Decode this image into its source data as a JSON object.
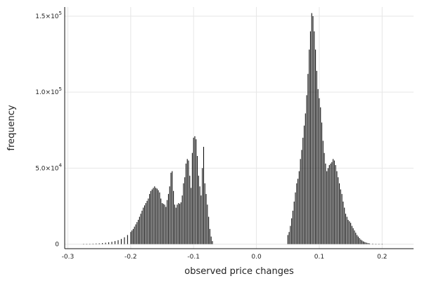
{
  "chart_data": {
    "type": "bar",
    "title": "",
    "xlabel": "observed price changes",
    "ylabel": "frequency",
    "xlim": [
      -0.305,
      0.25
    ],
    "ylim": [
      -3000,
      156000
    ],
    "grid": true,
    "legend": "none",
    "bar_color": "#111111",
    "grid_color": "#e6e6e6",
    "x_ticks": [
      {
        "value": -0.3,
        "label": "-0.3"
      },
      {
        "value": -0.2,
        "label": "-0.2"
      },
      {
        "value": -0.1,
        "label": "-0.1"
      },
      {
        "value": 0.0,
        "label": "0.0"
      },
      {
        "value": 0.1,
        "label": "0.1"
      },
      {
        "value": 0.2,
        "label": "0.2"
      }
    ],
    "y_ticks": [
      {
        "value": 0,
        "label": "0",
        "exp": ""
      },
      {
        "value": 50000,
        "label": "5.0×10",
        "exp": "4"
      },
      {
        "value": 100000,
        "label": "1.0×10",
        "exp": "5"
      },
      {
        "value": 150000,
        "label": "1.5×10",
        "exp": "5"
      }
    ],
    "x": [
      -0.275,
      -0.27,
      -0.265,
      -0.26,
      -0.255,
      -0.25,
      -0.245,
      -0.24,
      -0.235,
      -0.23,
      -0.225,
      -0.22,
      -0.215,
      -0.21,
      -0.205,
      -0.2,
      -0.198,
      -0.196,
      -0.194,
      -0.192,
      -0.19,
      -0.188,
      -0.186,
      -0.184,
      -0.182,
      -0.18,
      -0.178,
      -0.176,
      -0.174,
      -0.172,
      -0.17,
      -0.168,
      -0.166,
      -0.164,
      -0.162,
      -0.16,
      -0.158,
      -0.156,
      -0.154,
      -0.152,
      -0.15,
      -0.148,
      -0.146,
      -0.144,
      -0.142,
      -0.14,
      -0.138,
      -0.136,
      -0.134,
      -0.132,
      -0.13,
      -0.128,
      -0.126,
      -0.124,
      -0.122,
      -0.12,
      -0.118,
      -0.116,
      -0.114,
      -0.112,
      -0.11,
      -0.108,
      -0.106,
      -0.104,
      -0.102,
      -0.1,
      -0.098,
      -0.096,
      -0.094,
      -0.092,
      -0.09,
      -0.088,
      -0.086,
      -0.084,
      -0.082,
      -0.08,
      -0.078,
      -0.076,
      -0.074,
      -0.072,
      -0.07,
      0.05,
      0.052,
      0.054,
      0.056,
      0.058,
      0.06,
      0.062,
      0.064,
      0.066,
      0.068,
      0.07,
      0.072,
      0.074,
      0.076,
      0.078,
      0.08,
      0.082,
      0.084,
      0.086,
      0.088,
      0.09,
      0.092,
      0.094,
      0.096,
      0.098,
      0.1,
      0.102,
      0.104,
      0.106,
      0.108,
      0.11,
      0.112,
      0.114,
      0.116,
      0.118,
      0.12,
      0.122,
      0.124,
      0.126,
      0.128,
      0.13,
      0.132,
      0.134,
      0.136,
      0.138,
      0.14,
      0.142,
      0.144,
      0.146,
      0.148,
      0.15,
      0.152,
      0.154,
      0.156,
      0.158,
      0.16,
      0.162,
      0.164,
      0.166,
      0.168,
      0.17,
      0.172,
      0.174,
      0.176,
      0.178,
      0.18,
      0.185,
      0.19,
      0.195,
      0.2
    ],
    "values": [
      150,
      200,
      250,
      300,
      400,
      500,
      700,
      900,
      1200,
      1500,
      2000,
      2600,
      3400,
      4500,
      6000,
      8000,
      9000,
      10000,
      11500,
      13000,
      14500,
      16000,
      18000,
      20000,
      22000,
      24000,
      25500,
      27000,
      28500,
      30000,
      33000,
      35000,
      36000,
      37000,
      38000,
      37000,
      36500,
      35500,
      34000,
      30000,
      27000,
      26500,
      26000,
      24500,
      29000,
      33000,
      38000,
      47000,
      48000,
      35000,
      26000,
      24000,
      26000,
      27000,
      26500,
      27500,
      32000,
      40000,
      44000,
      53000,
      56000,
      55000,
      45000,
      37000,
      60000,
      70000,
      71000,
      69000,
      58000,
      45000,
      38000,
      32000,
      50000,
      64000,
      40000,
      33000,
      26000,
      18000,
      10000,
      5000,
      2000,
      6000,
      8000,
      12000,
      17000,
      22000,
      28000,
      34000,
      40000,
      43000,
      48000,
      56000,
      62000,
      70000,
      78000,
      86000,
      98000,
      112000,
      128000,
      140000,
      152000,
      150000,
      140000,
      128000,
      114000,
      102000,
      96000,
      90000,
      80000,
      68000,
      60000,
      53000,
      48000,
      50000,
      52000,
      53000,
      54000,
      56000,
      55000,
      52000,
      48000,
      44000,
      40000,
      36000,
      33000,
      28000,
      24000,
      20000,
      18000,
      16000,
      15000,
      14000,
      12000,
      10500,
      9000,
      7500,
      6000,
      5000,
      4000,
      3000,
      2400,
      1800,
      1400,
      1100,
      800,
      600,
      450,
      300,
      200,
      120,
      60
    ]
  }
}
